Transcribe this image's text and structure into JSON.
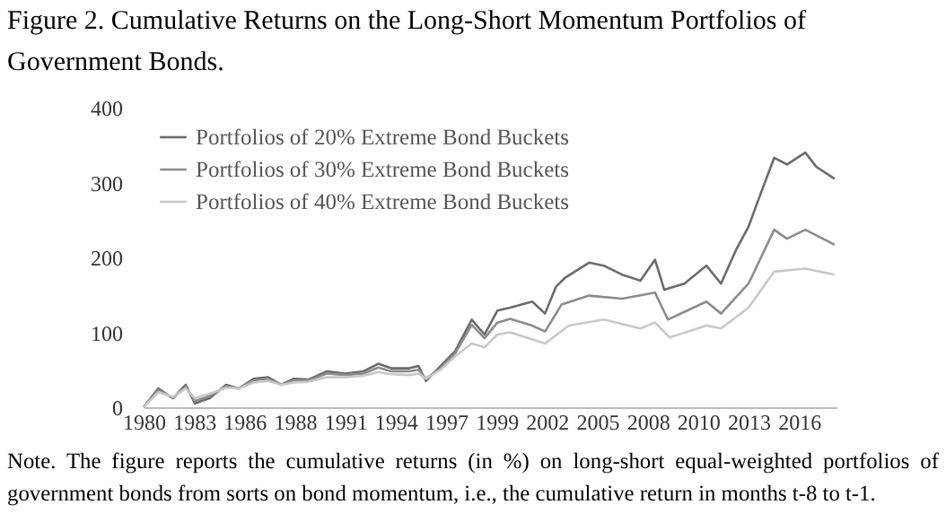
{
  "chart_data": {
    "type": "line",
    "title": "Figure 2. Cumulative Returns on the Long-Short Momentum Portfolios of Government Bonds.",
    "annotations": [
      "Note. The figure reports the cumulative returns (in %) on long-short equal-weighted portfolios of government bonds from sorts on bond momentum, i.e., the cumulative return in months t-8 to t-1."
    ],
    "xlim": [
      1980,
      2017.8
    ],
    "xticks": [
      {
        "value": 1980,
        "label": "1980"
      },
      {
        "value": 1982.75,
        "label": "1983"
      },
      {
        "value": 1985.5,
        "label": "1986"
      },
      {
        "value": 1988.25,
        "label": "1988"
      },
      {
        "value": 1991,
        "label": "1991"
      },
      {
        "value": 1993.75,
        "label": "1994"
      },
      {
        "value": 1996.5,
        "label": "1997"
      },
      {
        "value": 1999.25,
        "label": "1999"
      },
      {
        "value": 2002,
        "label": "2002"
      },
      {
        "value": 2004.75,
        "label": "2005"
      },
      {
        "value": 2007.5,
        "label": "2008"
      },
      {
        "value": 2010.25,
        "label": "2010"
      },
      {
        "value": 2013,
        "label": "2013"
      },
      {
        "value": 2015.75,
        "label": "2016"
      }
    ],
    "ylim": [
      0,
      400
    ],
    "yticks": [
      0,
      100,
      200,
      300,
      400
    ],
    "grid": false,
    "legend": "top left",
    "marker": "none",
    "line_style": "solid",
    "series": [
      {
        "name": "Portfolios of 20% Extreme Bond Buckets",
        "color": "#6b6b6b",
        "x": [
          1980,
          1980.8,
          1981.6,
          1982.3,
          1982.8,
          1983.6,
          1984.5,
          1985.2,
          1986,
          1986.8,
          1987.5,
          1988.2,
          1989,
          1990,
          1991,
          1992,
          1992.8,
          1993.5,
          1994.5,
          1995,
          1995.4,
          1996.2,
          1997,
          1997.9,
          1998.6,
          1999.3,
          2000,
          2001.2,
          2001.9,
          2002.5,
          2003,
          2004.3,
          2005.1,
          2006.1,
          2007.1,
          2007.9,
          2008.4,
          2009.5,
          2010.7,
          2011.5,
          2012.3,
          2013,
          2013.6,
          2014.4,
          2015.1,
          2016.1,
          2016.7,
          2017.7
        ],
        "values": [
          0,
          25,
          12,
          30,
          5,
          12,
          30,
          25,
          38,
          40,
          30,
          38,
          37,
          48,
          45,
          48,
          58,
          52,
          52,
          55,
          35,
          55,
          75,
          117,
          97,
          129,
          133,
          141,
          125,
          161,
          173,
          193,
          189,
          177,
          169,
          197,
          157,
          165,
          189,
          165,
          209,
          241,
          281,
          333,
          324,
          340,
          321,
          305
        ]
      },
      {
        "name": "Portfolios of 30% Extreme Bond Buckets",
        "color": "#8c8c8c",
        "x": [
          1980,
          1980.8,
          1981.6,
          1982.3,
          1982.8,
          1983.6,
          1984.5,
          1985.2,
          1986,
          1986.8,
          1987.5,
          1988.2,
          1989,
          1990,
          1991,
          1992,
          1992.8,
          1993.5,
          1994.5,
          1995,
          1995.4,
          1996.2,
          1997,
          1997.9,
          1998.6,
          1999.3,
          2000,
          2001.2,
          2001.9,
          2002.8,
          2004.3,
          2006.1,
          2007.9,
          2008.6,
          2010.7,
          2011.5,
          2013,
          2014.4,
          2015.1,
          2016.1,
          2017.7
        ],
        "values": [
          0,
          23,
          12,
          28,
          8,
          15,
          28,
          25,
          36,
          38,
          30,
          36,
          36,
          45,
          43,
          45,
          53,
          48,
          48,
          50,
          38,
          52,
          72,
          110,
          92,
          113,
          118,
          109,
          101,
          137,
          149,
          145,
          153,
          117,
          141,
          125,
          165,
          237,
          225,
          237,
          217
        ]
      },
      {
        "name": "Portfolios of 40% Extreme Bond Buckets",
        "color": "#c8c8c8",
        "x": [
          1980,
          1980.8,
          1981.6,
          1982.3,
          1982.8,
          1983.6,
          1984.5,
          1985.2,
          1986,
          1986.8,
          1987.5,
          1988.2,
          1989,
          1990,
          1991,
          1992,
          1992.8,
          1993.5,
          1994.5,
          1995,
          1995.4,
          1996.2,
          1997,
          1997.9,
          1998.6,
          1999.3,
          2000,
          2001.9,
          2003.2,
          2005.1,
          2007.1,
          2007.9,
          2008.7,
          2010.7,
          2011.5,
          2013,
          2014.4,
          2016.1,
          2017.7
        ],
        "values": [
          0,
          20,
          14,
          25,
          12,
          18,
          26,
          25,
          33,
          35,
          30,
          33,
          34,
          40,
          40,
          42,
          47,
          44,
          43,
          45,
          38,
          50,
          68,
          85,
          80,
          97,
          100,
          85,
          109,
          117,
          105,
          113,
          93,
          109,
          105,
          133,
          181,
          185,
          177
        ]
      }
    ]
  }
}
